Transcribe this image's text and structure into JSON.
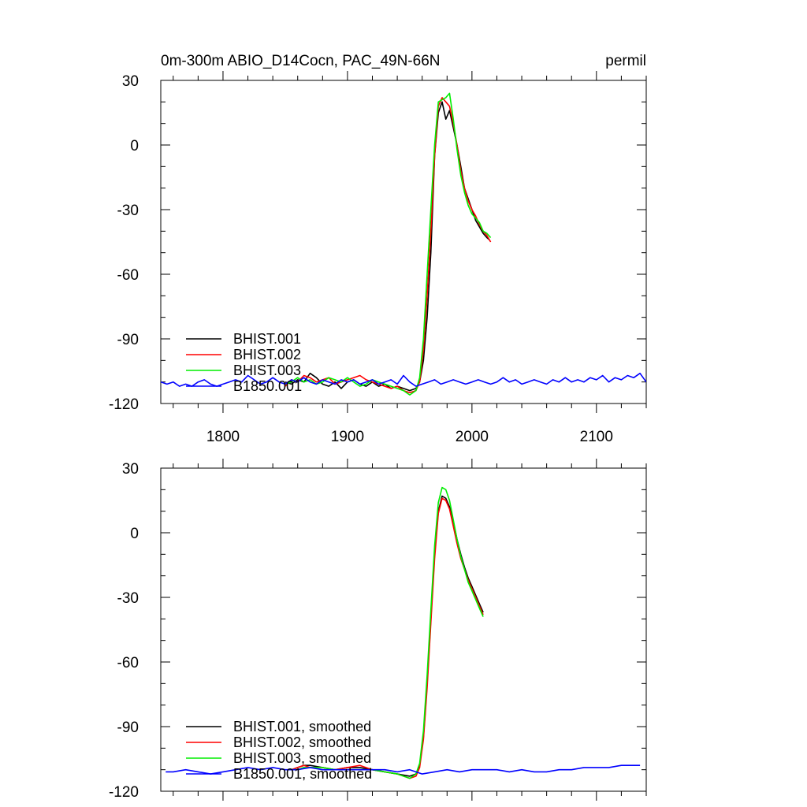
{
  "header": {
    "left_title": "0m-300m ABIO_D14Cocn, PAC_49N-66N",
    "right_title": "permil"
  },
  "chart_data": [
    {
      "type": "line",
      "xlim": [
        1750,
        2140
      ],
      "ylim": [
        -120,
        30
      ],
      "xticks": [
        1800,
        1900,
        2000,
        2100
      ],
      "xtick_labels": [
        "1800",
        "1900",
        "2000",
        "2100"
      ],
      "yticks": [
        30,
        0,
        -30,
        -60,
        -90,
        -120
      ],
      "ytick_labels": [
        "30",
        "0",
        "-30",
        "-60",
        "-90",
        "-120"
      ],
      "grid": false,
      "legend_position": "bottom-left",
      "series": [
        {
          "name": "BHIST.001",
          "color": "#000000",
          "x": [
            1850,
            1855,
            1860,
            1865,
            1870,
            1875,
            1880,
            1885,
            1890,
            1895,
            1900,
            1905,
            1910,
            1915,
            1920,
            1925,
            1930,
            1935,
            1940,
            1945,
            1950,
            1955,
            1958,
            1961,
            1964,
            1967,
            1970,
            1973,
            1976,
            1979,
            1982,
            1985,
            1988,
            1991,
            1994,
            1997,
            2000,
            2003,
            2006,
            2009,
            2012,
            2014
          ],
          "y": [
            -110,
            -111,
            -109,
            -110,
            -106,
            -108,
            -111,
            -112,
            -110,
            -113,
            -110,
            -109,
            -111,
            -112,
            -110,
            -112,
            -111,
            -113,
            -112,
            -113,
            -114,
            -113,
            -110,
            -100,
            -80,
            -50,
            -5,
            15,
            20,
            12,
            16,
            8,
            0,
            -10,
            -20,
            -25,
            -30,
            -35,
            -38,
            -41,
            -43,
            -44
          ]
        },
        {
          "name": "BHIST.002",
          "color": "#ff0000",
          "x": [
            1850,
            1855,
            1860,
            1865,
            1870,
            1875,
            1880,
            1885,
            1890,
            1895,
            1900,
            1905,
            1910,
            1915,
            1920,
            1925,
            1930,
            1935,
            1940,
            1945,
            1950,
            1955,
            1958,
            1961,
            1964,
            1967,
            1970,
            1973,
            1976,
            1979,
            1982,
            1985,
            1988,
            1991,
            1994,
            1997,
            2000,
            2003,
            2006,
            2009,
            2012,
            2015
          ],
          "y": [
            -112,
            -109,
            -110,
            -107,
            -108,
            -110,
            -109,
            -108,
            -111,
            -110,
            -109,
            -108,
            -107,
            -109,
            -110,
            -111,
            -112,
            -113,
            -112,
            -114,
            -115,
            -114,
            -110,
            -95,
            -70,
            -40,
            -5,
            18,
            22,
            20,
            18,
            10,
            0,
            -12,
            -20,
            -26,
            -30,
            -33,
            -37,
            -40,
            -42,
            -45
          ]
        },
        {
          "name": "BHIST.003",
          "color": "#00ee00",
          "x": [
            1850,
            1855,
            1860,
            1865,
            1870,
            1875,
            1880,
            1885,
            1890,
            1895,
            1900,
            1905,
            1910,
            1915,
            1920,
            1925,
            1930,
            1935,
            1940,
            1945,
            1950,
            1955,
            1958,
            1961,
            1964,
            1967,
            1970,
            1973,
            1976,
            1979,
            1982,
            1985,
            1988,
            1991,
            1994,
            1997,
            2000,
            2003,
            2006,
            2009,
            2012,
            2015
          ],
          "y": [
            -111,
            -110,
            -108,
            -110,
            -109,
            -111,
            -110,
            -108,
            -109,
            -110,
            -108,
            -110,
            -112,
            -111,
            -109,
            -110,
            -111,
            -112,
            -113,
            -114,
            -116,
            -114,
            -108,
            -90,
            -60,
            -30,
            0,
            20,
            21,
            22,
            24,
            12,
            -2,
            -14,
            -22,
            -28,
            -32,
            -34,
            -36,
            -40,
            -41,
            -43
          ]
        },
        {
          "name": "B1850.001",
          "color": "#0000ff",
          "x": [
            1750,
            1755,
            1760,
            1765,
            1770,
            1775,
            1780,
            1785,
            1790,
            1795,
            1800,
            1805,
            1810,
            1815,
            1820,
            1825,
            1830,
            1835,
            1840,
            1845,
            1850,
            1855,
            1860,
            1865,
            1870,
            1875,
            1880,
            1885,
            1890,
            1895,
            1900,
            1905,
            1910,
            1915,
            1920,
            1925,
            1930,
            1935,
            1940,
            1945,
            1950,
            1955,
            1960,
            1965,
            1970,
            1975,
            1980,
            1985,
            1990,
            1995,
            2000,
            2005,
            2010,
            2015,
            2020,
            2025,
            2030,
            2035,
            2040,
            2045,
            2050,
            2055,
            2060,
            2065,
            2070,
            2075,
            2080,
            2085,
            2090,
            2095,
            2100,
            2105,
            2110,
            2115,
            2120,
            2125,
            2130,
            2135,
            2140
          ],
          "y": [
            -110,
            -111,
            -110,
            -112,
            -111,
            -112,
            -110,
            -109,
            -111,
            -112,
            -111,
            -110,
            -109,
            -110,
            -107,
            -109,
            -111,
            -110,
            -108,
            -110,
            -111,
            -109,
            -110,
            -108,
            -110,
            -111,
            -109,
            -110,
            -111,
            -109,
            -110,
            -109,
            -111,
            -110,
            -109,
            -111,
            -110,
            -109,
            -111,
            -107,
            -110,
            -112,
            -111,
            -110,
            -109,
            -111,
            -110,
            -109,
            -110,
            -111,
            -110,
            -109,
            -110,
            -111,
            -110,
            -108,
            -110,
            -109,
            -111,
            -110,
            -109,
            -110,
            -111,
            -109,
            -110,
            -108,
            -110,
            -109,
            -110,
            -108,
            -109,
            -107,
            -110,
            -108,
            -109,
            -107,
            -108,
            -106,
            -110
          ]
        }
      ]
    },
    {
      "type": "line",
      "xlim": [
        1750,
        2140
      ],
      "ylim": [
        -120,
        30
      ],
      "xticks": [
        1800,
        1900,
        2000,
        2100
      ],
      "xtick_labels": [],
      "yticks": [
        30,
        0,
        -30,
        -60,
        -90,
        -120
      ],
      "ytick_labels": [
        "30",
        "0",
        "-30",
        "-60",
        "-90",
        "-120"
      ],
      "grid": false,
      "legend_position": "bottom-left",
      "series": [
        {
          "name": "BHIST.001, smoothed",
          "color": "#000000",
          "x": [
            1855,
            1860,
            1865,
            1870,
            1880,
            1890,
            1900,
            1910,
            1920,
            1930,
            1940,
            1950,
            1955,
            1958,
            1961,
            1964,
            1967,
            1970,
            1973,
            1976,
            1979,
            1982,
            1985,
            1988,
            1991,
            1994,
            1997,
            2000,
            2003,
            2006,
            2009
          ],
          "y": [
            -110,
            -109,
            -108,
            -108,
            -109,
            -110,
            -109,
            -109,
            -110,
            -111,
            -112,
            -113,
            -112,
            -108,
            -95,
            -70,
            -40,
            -10,
            10,
            17,
            16,
            12,
            5,
            -3,
            -10,
            -16,
            -21,
            -25,
            -29,
            -33,
            -37
          ]
        },
        {
          "name": "BHIST.002, smoothed",
          "color": "#ff0000",
          "x": [
            1855,
            1860,
            1865,
            1870,
            1880,
            1890,
            1900,
            1910,
            1920,
            1930,
            1940,
            1950,
            1955,
            1958,
            1961,
            1964,
            1967,
            1970,
            1973,
            1976,
            1979,
            1982,
            1985,
            1988,
            1991,
            1994,
            1997,
            2000,
            2003,
            2006,
            2009
          ],
          "y": [
            -110,
            -109,
            -108,
            -109,
            -109,
            -110,
            -109,
            -108,
            -110,
            -111,
            -112,
            -114,
            -113,
            -109,
            -96,
            -72,
            -42,
            -12,
            9,
            16,
            15,
            11,
            3,
            -5,
            -12,
            -17,
            -22,
            -26,
            -30,
            -34,
            -38
          ]
        },
        {
          "name": "BHIST.003, smoothed",
          "color": "#00ee00",
          "x": [
            1855,
            1860,
            1865,
            1870,
            1880,
            1890,
            1900,
            1910,
            1920,
            1930,
            1940,
            1950,
            1955,
            1958,
            1961,
            1964,
            1967,
            1970,
            1973,
            1976,
            1979,
            1982,
            1985,
            1988,
            1991,
            1994,
            1997,
            2000,
            2003,
            2006,
            2009
          ],
          "y": [
            -110,
            -110,
            -109,
            -109,
            -109,
            -110,
            -110,
            -110,
            -110,
            -111,
            -112,
            -114,
            -112,
            -107,
            -92,
            -66,
            -36,
            -6,
            14,
            21,
            20,
            15,
            6,
            -3,
            -11,
            -17,
            -23,
            -27,
            -31,
            -35,
            -39
          ]
        },
        {
          "name": "B1850.001, smoothed",
          "color": "#0000ff",
          "x": [
            1754,
            1760,
            1770,
            1780,
            1790,
            1800,
            1810,
            1820,
            1830,
            1840,
            1850,
            1860,
            1870,
            1880,
            1890,
            1900,
            1910,
            1920,
            1930,
            1940,
            1950,
            1960,
            1970,
            1980,
            1990,
            2000,
            2010,
            2020,
            2030,
            2040,
            2050,
            2060,
            2070,
            2080,
            2090,
            2100,
            2110,
            2120,
            2130,
            2135
          ],
          "y": [
            -111,
            -111,
            -110,
            -111,
            -112,
            -111,
            -110,
            -109,
            -110,
            -109,
            -110,
            -110,
            -109,
            -110,
            -110,
            -110,
            -110,
            -110,
            -110,
            -111,
            -110,
            -112,
            -111,
            -110,
            -111,
            -110,
            -110,
            -110,
            -111,
            -110,
            -111,
            -111,
            -110,
            -110,
            -109,
            -109,
            -109,
            -108,
            -108,
            -108
          ]
        }
      ]
    }
  ]
}
